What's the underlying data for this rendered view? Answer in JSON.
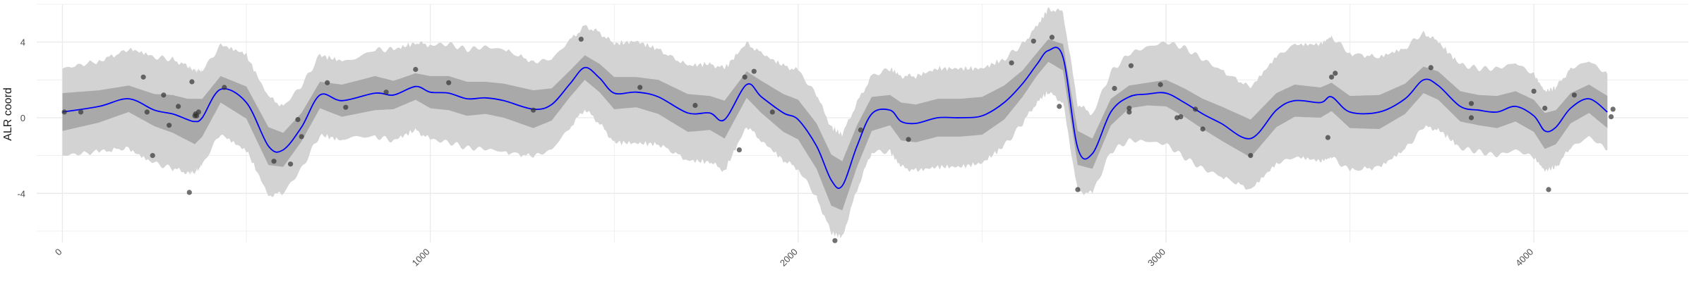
{
  "chart_data": {
    "type": "line",
    "ylabel": "ALR coord",
    "xlabel": "",
    "title": "",
    "xlim": [
      -70,
      4420
    ],
    "ylim": [
      -6.6,
      6.0
    ],
    "x_ticks": [
      0,
      1000,
      2000,
      3000,
      4000
    ],
    "x_tick_labels": [
      "0",
      "1000",
      "2000",
      "3000",
      "4000"
    ],
    "y_ticks": [
      -4,
      0,
      4
    ],
    "y_tick_labels": [
      "-4",
      "0",
      "4"
    ],
    "grid": true,
    "colors": {
      "mean_line": "#0000ff",
      "inner_band": "#a9a9a9",
      "outer_band": "#d3d3d3",
      "points": "#333333",
      "grid": "#ebebeb"
    },
    "mean_curve": {
      "x": [
        0,
        100,
        180,
        250,
        300,
        340,
        360,
        380,
        430,
        500,
        560,
        600,
        650,
        700,
        760,
        850,
        900,
        960,
        1000,
        1050,
        1100,
        1150,
        1200,
        1280,
        1330,
        1380,
        1420,
        1460,
        1500,
        1560,
        1620,
        1700,
        1760,
        1800,
        1860,
        1900,
        1960,
        2000,
        2050,
        2090,
        2120,
        2160,
        2200,
        2250,
        2280,
        2320,
        2380,
        2440,
        2500,
        2560,
        2610,
        2650,
        2680,
        2720,
        2760,
        2800,
        2850,
        2900,
        2950,
        3000,
        3050,
        3100,
        3150,
        3230,
        3300,
        3350,
        3420,
        3450,
        3500,
        3580,
        3650,
        3700,
        3740,
        3800,
        3850,
        3900,
        3950,
        4000,
        4030,
        4060,
        4100,
        4150,
        4200
      ],
      "y": [
        0.3,
        0.6,
        1.0,
        0.4,
        0.2,
        -0.1,
        -0.2,
        0.0,
        1.5,
        0.8,
        -1.5,
        -1.7,
        -0.5,
        1.2,
        0.9,
        1.3,
        1.2,
        1.65,
        1.35,
        1.3,
        1.0,
        1.05,
        0.9,
        0.45,
        0.7,
        1.8,
        2.65,
        2.1,
        1.3,
        1.35,
        1.1,
        0.25,
        0.25,
        -0.1,
        1.75,
        1.1,
        0.25,
        -0.1,
        -1.5,
        -3.3,
        -3.6,
        -1.5,
        0.2,
        0.4,
        -0.2,
        -0.3,
        0.0,
        0.0,
        0.1,
        0.8,
        1.8,
        2.85,
        3.55,
        3.2,
        -1.6,
        -1.9,
        0.3,
        1.1,
        1.25,
        1.3,
        0.8,
        0.2,
        -0.3,
        -1.1,
        0.4,
        0.9,
        0.8,
        1.1,
        0.3,
        0.3,
        1.0,
        2.0,
        1.7,
        0.6,
        0.4,
        0.3,
        0.6,
        0.1,
        -0.7,
        -0.5,
        0.5,
        1.0,
        0.3
      ]
    },
    "inner_band_halfwidth": [
      1.0,
      0.85,
      0.7,
      0.85,
      1.0,
      1.1,
      1.2,
      1.0,
      0.7,
      0.85,
      1.0,
      0.9,
      0.75,
      0.7,
      0.85,
      0.9,
      0.75,
      0.7,
      0.85,
      0.9,
      0.9,
      0.85,
      0.9,
      1.0,
      0.85,
      0.7,
      0.65,
      0.75,
      0.85,
      0.8,
      0.9,
      1.0,
      0.9,
      1.0,
      0.7,
      0.85,
      1.0,
      1.05,
      1.2,
      1.35,
      1.3,
      1.1,
      0.9,
      0.8,
      1.0,
      1.0,
      1.0,
      1.0,
      1.0,
      0.9,
      0.7,
      0.6,
      0.6,
      0.7,
      0.9,
      0.8,
      0.7,
      0.6,
      0.6,
      0.7,
      0.75,
      0.8,
      0.9,
      1.0,
      0.9,
      0.85,
      0.8,
      0.75,
      0.85,
      0.9,
      0.8,
      0.7,
      0.75,
      0.8,
      0.8,
      0.85,
      0.8,
      0.85,
      0.95,
      0.9,
      0.8,
      0.75,
      0.85
    ],
    "outer_band_halfwidth": [
      2.3,
      2.4,
      2.6,
      2.8,
      2.9,
      2.8,
      2.7,
      2.5,
      2.3,
      2.5,
      2.6,
      2.3,
      2.2,
      2.1,
      2.1,
      2.3,
      2.4,
      2.3,
      2.5,
      2.6,
      2.6,
      2.7,
      2.7,
      2.5,
      2.4,
      2.3,
      2.2,
      2.4,
      2.6,
      2.7,
      2.5,
      2.5,
      2.6,
      2.7,
      2.2,
      2.3,
      2.5,
      2.6,
      2.7,
      2.8,
      2.7,
      2.3,
      2.0,
      2.2,
      2.4,
      2.5,
      2.6,
      2.6,
      2.5,
      2.3,
      2.1,
      2.0,
      2.2,
      2.4,
      2.3,
      2.1,
      2.1,
      2.3,
      2.5,
      2.7,
      2.9,
      2.9,
      2.8,
      2.7,
      2.8,
      3.0,
      3.1,
      3.2,
      3.1,
      2.9,
      2.7,
      2.5,
      2.3,
      2.2,
      2.2,
      2.3,
      2.3,
      2.2,
      2.1,
      2.1,
      2.1,
      2.0,
      2.0
    ],
    "points": {
      "x": [
        5,
        50,
        220,
        230,
        245,
        275,
        290,
        315,
        345,
        352,
        360,
        362,
        365,
        370,
        440,
        575,
        620,
        640,
        650,
        720,
        770,
        880,
        960,
        1050,
        1280,
        1410,
        1570,
        1720,
        1840,
        1855,
        1880,
        1930,
        2100,
        2170,
        2300,
        2580,
        2640,
        2690,
        2710,
        2760,
        2860,
        2900,
        2900,
        2905,
        2985,
        3030,
        3040,
        3080,
        3100,
        3230,
        3440,
        3450,
        3460,
        3720,
        3830,
        3830,
        4000,
        4030,
        4040,
        4110,
        4210,
        4215
      ],
      "y": [
        0.3,
        0.3,
        2.15,
        0.3,
        -2.0,
        1.2,
        -0.4,
        0.6,
        -3.95,
        1.9,
        0.1,
        0.2,
        0.1,
        0.3,
        1.6,
        -2.3,
        -2.45,
        -0.1,
        -1.0,
        1.85,
        0.55,
        1.35,
        2.55,
        1.85,
        0.4,
        4.15,
        1.6,
        0.65,
        -1.7,
        2.15,
        2.45,
        0.3,
        -6.5,
        -0.65,
        -1.15,
        2.9,
        4.05,
        4.25,
        0.6,
        -3.8,
        1.55,
        0.3,
        0.5,
        2.75,
        1.75,
        0.0,
        0.05,
        0.45,
        -0.6,
        -2.0,
        -1.05,
        2.15,
        2.35,
        2.65,
        0.75,
        0.0,
        1.4,
        0.5,
        -3.8,
        1.2,
        0.05,
        0.45
      ]
    }
  }
}
